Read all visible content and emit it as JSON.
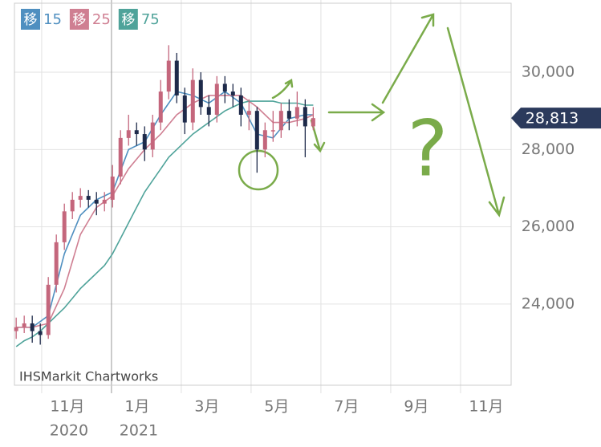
{
  "chart_data": {
    "type": "candlestick",
    "source": "IHSMarkit Chartworks",
    "annotation": "?",
    "ma_label": "移",
    "xlim": [
      10.22,
      24.45
    ],
    "ylim": [
      21900,
      31870
    ],
    "xticks": [
      {
        "value": 11,
        "label": "11月"
      },
      {
        "value": 13,
        "label": "1月"
      },
      {
        "value": 15,
        "label": "3月"
      },
      {
        "value": 17,
        "label": "5月"
      },
      {
        "value": 19,
        "label": "7月"
      },
      {
        "value": 21,
        "label": "9月"
      },
      {
        "value": 23,
        "label": "11月"
      }
    ],
    "xtick_years": [
      {
        "value": 11,
        "label": "2020"
      },
      {
        "value": 13,
        "label": "2021"
      }
    ],
    "yticks": [
      {
        "value": 24000,
        "label": "24,000"
      },
      {
        "value": 26000,
        "label": "26,000"
      },
      {
        "value": 28000,
        "label": "28,000"
      },
      {
        "value": 30000,
        "label": "30,000"
      }
    ],
    "grid": true,
    "up_color": "#c4667c",
    "down_color": "#1e2a4a",
    "last_price": {
      "value": 28813,
      "label": "28,813"
    },
    "x": [
      10.27,
      10.5,
      10.73,
      10.96,
      11.19,
      11.42,
      11.65,
      11.88,
      12.11,
      12.34,
      12.57,
      12.8,
      13.03,
      13.26,
      13.49,
      13.72,
      13.95,
      14.18,
      14.41,
      14.64,
      14.87,
      15.1,
      15.33,
      15.56,
      15.79,
      16.02,
      16.25,
      16.48,
      16.71,
      16.94,
      17.17,
      17.4,
      17.63,
      17.86,
      18.09,
      18.32,
      18.55,
      18.78
    ],
    "open": [
      23300,
      23400,
      23500,
      23300,
      23200,
      24500,
      25600,
      26400,
      26700,
      26800,
      26700,
      26600,
      26700,
      27300,
      28300,
      28500,
      28400,
      28000,
      28700,
      29500,
      30300,
      29400,
      28700,
      29800,
      29100,
      28900,
      29700,
      29500,
      29400,
      28900,
      29000,
      28000,
      28500,
      28500,
      29000,
      28800,
      29100,
      28600
    ],
    "high": [
      23650,
      23700,
      23700,
      23500,
      24700,
      25800,
      26600,
      26900,
      27000,
      26950,
      26900,
      26900,
      27600,
      28500,
      28900,
      28700,
      28600,
      28900,
      29800,
      30700,
      30500,
      29600,
      30100,
      30000,
      29400,
      29900,
      29900,
      29700,
      29600,
      29300,
      29100,
      28700,
      29000,
      29200,
      29300,
      29500,
      29300,
      29100
    ],
    "low": [
      23100,
      23250,
      23000,
      22950,
      23100,
      24300,
      25400,
      26200,
      26500,
      26500,
      26300,
      26400,
      26500,
      27100,
      28100,
      28100,
      27700,
      27800,
      28500,
      29300,
      29200,
      28400,
      28500,
      28900,
      28600,
      28700,
      29200,
      29100,
      28600,
      28500,
      27400,
      27800,
      28200,
      28300,
      28500,
      28600,
      27800,
      28500
    ],
    "close": [
      23400,
      23500,
      23300,
      23200,
      24500,
      25600,
      26400,
      26700,
      26800,
      26700,
      26600,
      26700,
      27300,
      28300,
      28500,
      28400,
      28000,
      28700,
      29500,
      30300,
      29400,
      28700,
      29800,
      29100,
      28900,
      29700,
      29500,
      29400,
      28900,
      29000,
      28000,
      28500,
      28500,
      29000,
      28800,
      29100,
      28600,
      28813
    ],
    "series": [
      {
        "name": "15",
        "color": "#4f8fc0",
        "values": [
          23400,
          23400,
          23400,
          23550,
          23700,
          24500,
          25300,
          25800,
          26300,
          26500,
          26700,
          26800,
          26900,
          27450,
          28000,
          28100,
          28200,
          28550,
          28900,
          29200,
          29500,
          29450,
          29400,
          29300,
          29200,
          29350,
          29500,
          29350,
          29200,
          28800,
          28400,
          28350,
          28300,
          28550,
          28800,
          28850,
          28900,
          28900
        ]
      },
      {
        "name": "25",
        "color": "#cf7f92",
        "values": [
          23400,
          23400,
          23400,
          23450,
          23500,
          23950,
          24400,
          25100,
          25800,
          26150,
          26500,
          26650,
          26800,
          27150,
          27500,
          27750,
          28000,
          28200,
          28400,
          28650,
          28900,
          29050,
          29200,
          29300,
          29400,
          29400,
          29400,
          29400,
          29400,
          29250,
          29100,
          28900,
          28700,
          28700,
          28700,
          28750,
          28800,
          28900
        ]
      },
      {
        "name": "75",
        "color": "#4fa39a",
        "values": [
          22900,
          23050,
          23150,
          23300,
          23500,
          23700,
          23900,
          24150,
          24400,
          24600,
          24800,
          25000,
          25300,
          25700,
          26100,
          26500,
          26900,
          27200,
          27500,
          27800,
          28000,
          28200,
          28400,
          28550,
          28700,
          28850,
          29000,
          29100,
          29200,
          29250,
          29250,
          29250,
          29250,
          29200,
          29200,
          29200,
          29150,
          29150
        ]
      }
    ]
  }
}
